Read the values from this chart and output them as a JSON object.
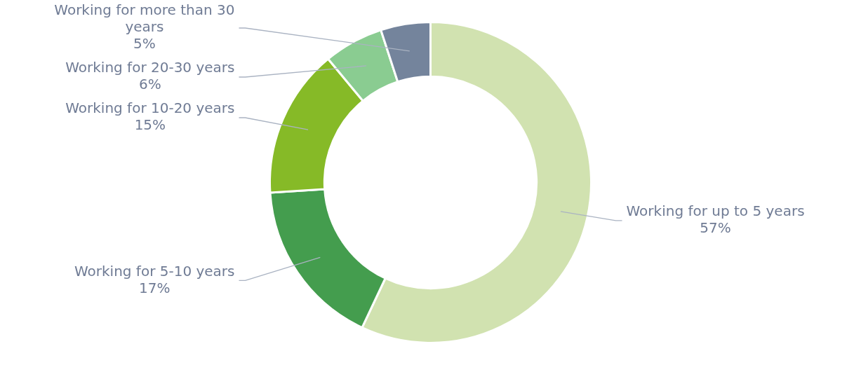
{
  "chart_data": {
    "type": "donut",
    "categories": [
      "Working for up to 5 years",
      "Working for 5-10 years",
      "Working for 10-20 years",
      "Working for 20-30 years",
      "Working for more than 30 years"
    ],
    "values": [
      57,
      17,
      15,
      6,
      5
    ],
    "value_labels": [
      "57%",
      "17%",
      "15%",
      "6%",
      "5%"
    ],
    "colors": [
      "#d1e2b0",
      "#449d4e",
      "#86ba27",
      "#8acc91",
      "#74849c"
    ],
    "legend": false
  }
}
